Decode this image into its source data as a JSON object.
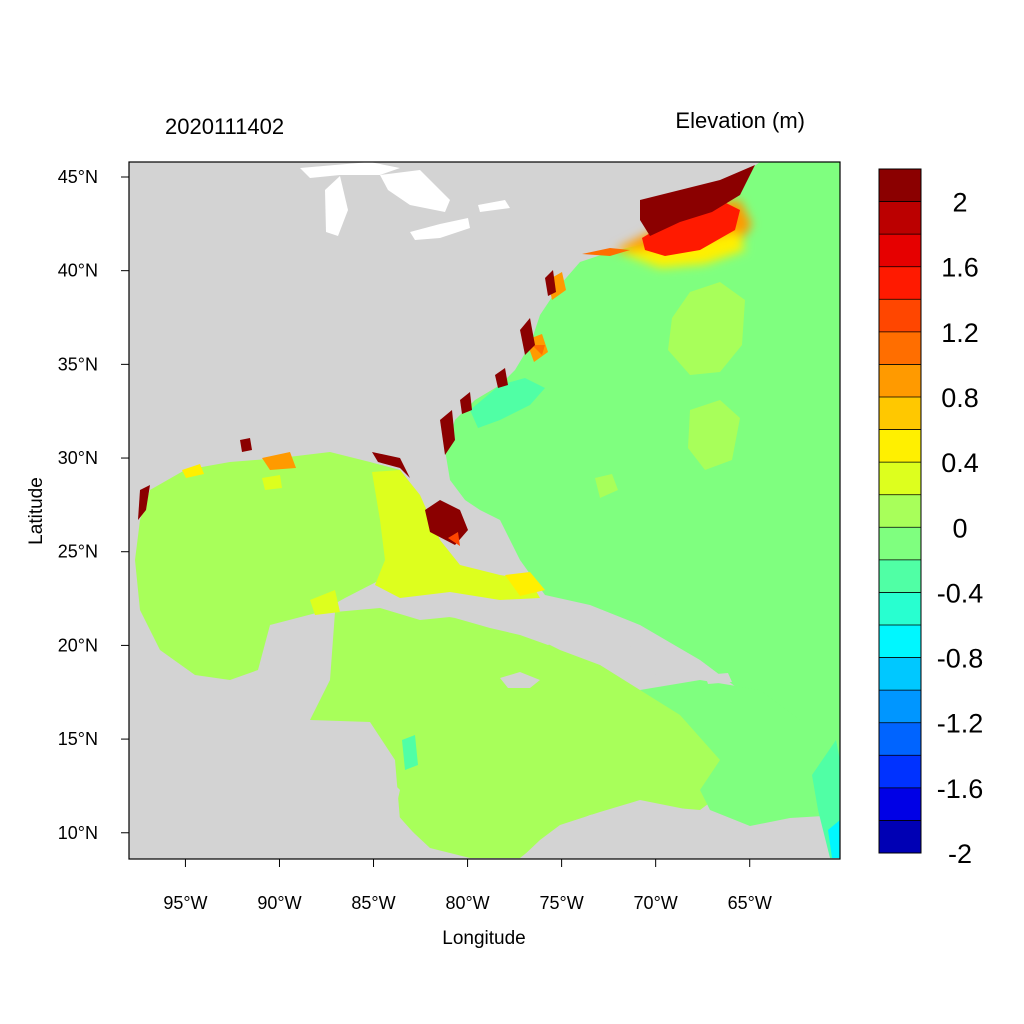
{
  "header": {
    "timestamp": "2020111402",
    "variable": "Elevation (m)"
  },
  "axes": {
    "xlabel": "Longitude",
    "ylabel": "Latitude",
    "x_ticks": [
      {
        "value": -95,
        "label": "95°W"
      },
      {
        "value": -90,
        "label": "90°W"
      },
      {
        "value": -85,
        "label": "85°W"
      },
      {
        "value": -80,
        "label": "80°W"
      },
      {
        "value": -75,
        "label": "75°W"
      },
      {
        "value": -70,
        "label": "70°W"
      },
      {
        "value": -65,
        "label": "65°W"
      }
    ],
    "y_ticks": [
      {
        "value": 45,
        "label": "45°N"
      },
      {
        "value": 40,
        "label": "40°N"
      },
      {
        "value": 35,
        "label": "35°N"
      },
      {
        "value": 30,
        "label": "30°N"
      },
      {
        "value": 25,
        "label": "25°N"
      },
      {
        "value": 20,
        "label": "20°N"
      },
      {
        "value": 15,
        "label": "15°N"
      },
      {
        "value": 10,
        "label": "10°N"
      }
    ],
    "lon_range": [
      -98,
      -60.2
    ],
    "lat_range": [
      8.6,
      45.8
    ]
  },
  "colors": {
    "land": "#d3d3d3",
    "surge_zero": "#7fff7f",
    "gulf": "#a8ff5a",
    "max_surge": "#8b0000"
  },
  "colorbar": {
    "labels": [
      "2",
      "1.6",
      "1.2",
      "0.8",
      "0.4",
      "0",
      "-0.4",
      "-0.8",
      "-1.2",
      "-1.6",
      "-2"
    ],
    "colors": [
      "#8b0000",
      "#bb0000",
      "#e60000",
      "#ff1a00",
      "#ff4600",
      "#ff6e00",
      "#ff9a00",
      "#ffc800",
      "#fff000",
      "#ddff1e",
      "#a8ff5a",
      "#7fff7f",
      "#50ffa5",
      "#28ffd0",
      "#00f7ff",
      "#00c8ff",
      "#0096ff",
      "#0064ff",
      "#0032ff",
      "#0000e6",
      "#0000b4"
    ]
  }
}
